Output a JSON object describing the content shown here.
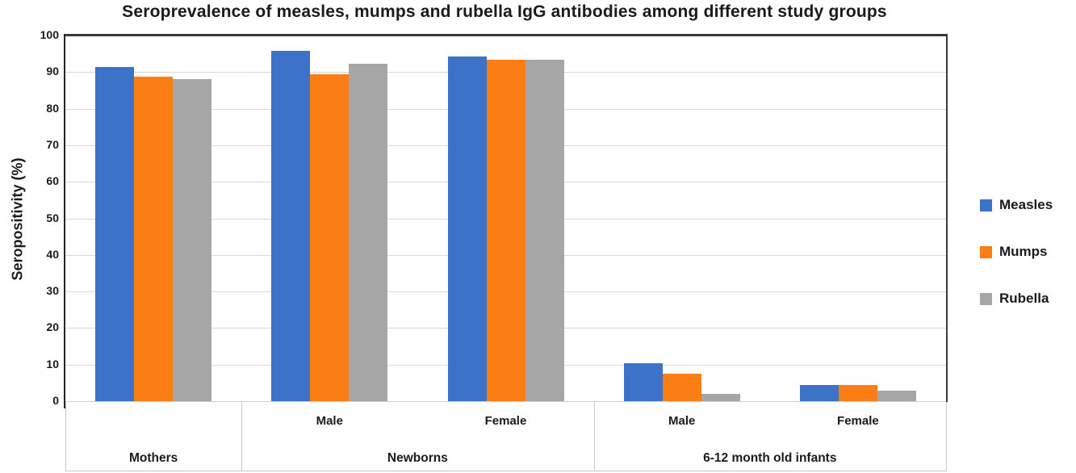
{
  "chart_data": {
    "type": "bar",
    "title": "Seroprevalence of measles, mumps and rubella IgG antibodies among different study groups",
    "ylabel": "Seropositivity (%)",
    "ylim": [
      0,
      100
    ],
    "ytick_step": 10,
    "grid": true,
    "legend_position": "right",
    "sub_labels": [
      "",
      "Male",
      "Female",
      "Male",
      "Female"
    ],
    "group_spans": [
      {
        "label": "Mothers",
        "start": 0,
        "end": 1
      },
      {
        "label": "Newborns",
        "start": 1,
        "end": 3
      },
      {
        "label": "6-12 month old infants",
        "start": 3,
        "end": 5
      }
    ],
    "series": [
      {
        "name": "Measles",
        "color": "#3C72C8",
        "values": [
          91.5,
          95.8,
          94.2,
          10.4,
          4.4
        ]
      },
      {
        "name": "Mumps",
        "color": "#FB7E14",
        "values": [
          88.7,
          89.3,
          93.4,
          7.5,
          4.4
        ]
      },
      {
        "name": "Rubella",
        "color": "#A6A6A6",
        "values": [
          88.0,
          92.2,
          93.4,
          2.0,
          2.8
        ]
      }
    ],
    "colors": {
      "grid": "#D9D9D9",
      "zero_line": "#CFCFCF",
      "axis_dark": "#3A3A3A",
      "axis_left": "#262626",
      "divider": "#C8C8C8",
      "text": "#1A1A1A"
    }
  }
}
